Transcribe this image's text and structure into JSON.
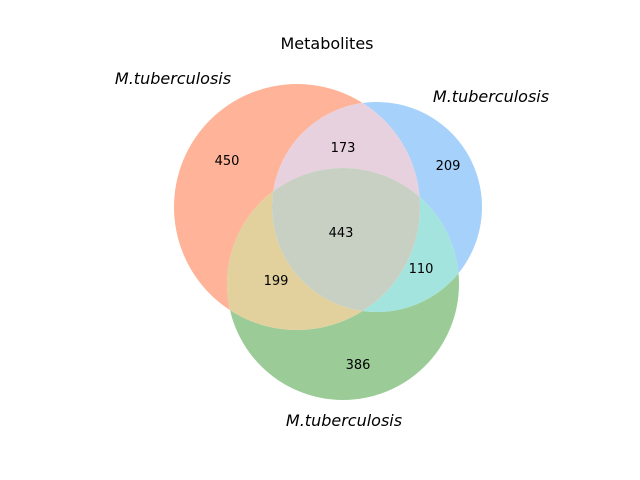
{
  "title": "Metabolites",
  "sets": [
    {
      "label": "M.tuberculosis",
      "color": "#ffa07a"
    },
    {
      "label": "M.tuberculosis",
      "color": "#87c1ff"
    },
    {
      "label": "M.tuberculosis",
      "color": "#77c073"
    }
  ],
  "chart_data": {
    "type": "venn3",
    "title": "Metabolites",
    "regions": {
      "A_only": 450,
      "B_only": 209,
      "C_only": 386,
      "AB_only": 173,
      "AC_only": 199,
      "BC_only": 110,
      "ABC": 443
    }
  }
}
